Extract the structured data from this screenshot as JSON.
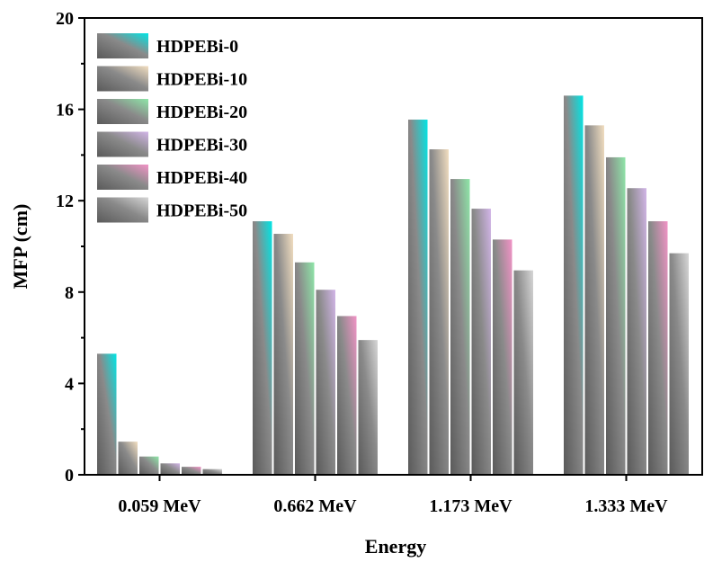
{
  "chart_data": {
    "type": "bar",
    "title": "",
    "xlabel": "Energy",
    "ylabel": "MFP (cm)",
    "ylim": [
      0,
      20
    ],
    "yticks": [
      0,
      4,
      8,
      12,
      16,
      20
    ],
    "ytick_labels": [
      "0",
      "4",
      "8",
      "12",
      "16",
      "20"
    ],
    "grid": false,
    "legend_position": "top-left",
    "categories": [
      "0.059 MeV",
      "0.662 MeV",
      "1.173 MeV",
      "1.333 MeV"
    ],
    "series": [
      {
        "name": "HDPEBi-0",
        "color": "#00E5E5",
        "values": [
          5.3,
          11.1,
          15.55,
          16.6
        ]
      },
      {
        "name": "HDPEBi-10",
        "color": "#F2DEC0",
        "values": [
          1.45,
          10.55,
          14.25,
          15.3
        ]
      },
      {
        "name": "HDPEBi-20",
        "color": "#8EE6A8",
        "values": [
          0.8,
          9.3,
          12.95,
          13.9
        ]
      },
      {
        "name": "HDPEBi-30",
        "color": "#D2B5E8",
        "values": [
          0.5,
          8.1,
          11.65,
          12.55
        ]
      },
      {
        "name": "HDPEBi-40",
        "color": "#F293C6",
        "values": [
          0.35,
          6.95,
          10.3,
          11.1
        ]
      },
      {
        "name": "HDPEBi-50",
        "color": "#D6D6D6",
        "values": [
          0.25,
          5.9,
          8.95,
          9.7
        ]
      }
    ]
  }
}
